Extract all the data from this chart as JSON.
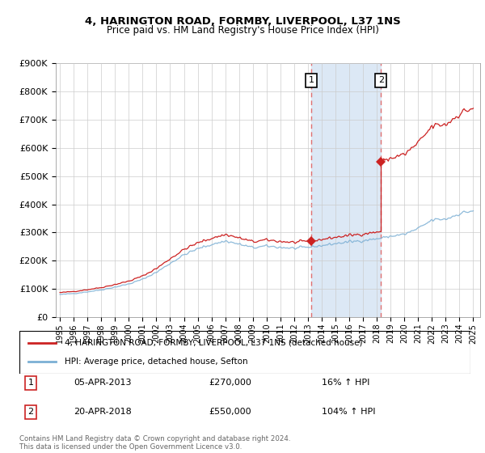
{
  "title": "4, HARINGTON ROAD, FORMBY, LIVERPOOL, L37 1NS",
  "subtitle": "Price paid vs. HM Land Registry's House Price Index (HPI)",
  "legend_line1": "4, HARINGTON ROAD, FORMBY, LIVERPOOL, L37 1NS (detached house)",
  "legend_line2": "HPI: Average price, detached house, Sefton",
  "annotation1_label": "1",
  "annotation1_date": "05-APR-2013",
  "annotation1_price": "£270,000",
  "annotation1_hpi": "16% ↑ HPI",
  "annotation2_label": "2",
  "annotation2_date": "20-APR-2018",
  "annotation2_price": "£550,000",
  "annotation2_hpi": "104% ↑ HPI",
  "footnote": "Contains HM Land Registry data © Crown copyright and database right 2024.\nThis data is licensed under the Open Government Licence v3.0.",
  "sale1_year": 2013.25,
  "sale1_price": 270000,
  "sale2_year": 2018.3,
  "sale2_price": 550000,
  "hpi_color": "#7bafd4",
  "price_color": "#cc2222",
  "shade_color": "#dce8f5",
  "vline_color": "#e07070",
  "ylim_min": 0,
  "ylim_max": 900000,
  "xlim_min": 1994.7,
  "xlim_max": 2025.5,
  "background_color": "#ffffff",
  "grid_color": "#cccccc",
  "figwidth": 6.0,
  "figheight": 5.6,
  "dpi": 100
}
